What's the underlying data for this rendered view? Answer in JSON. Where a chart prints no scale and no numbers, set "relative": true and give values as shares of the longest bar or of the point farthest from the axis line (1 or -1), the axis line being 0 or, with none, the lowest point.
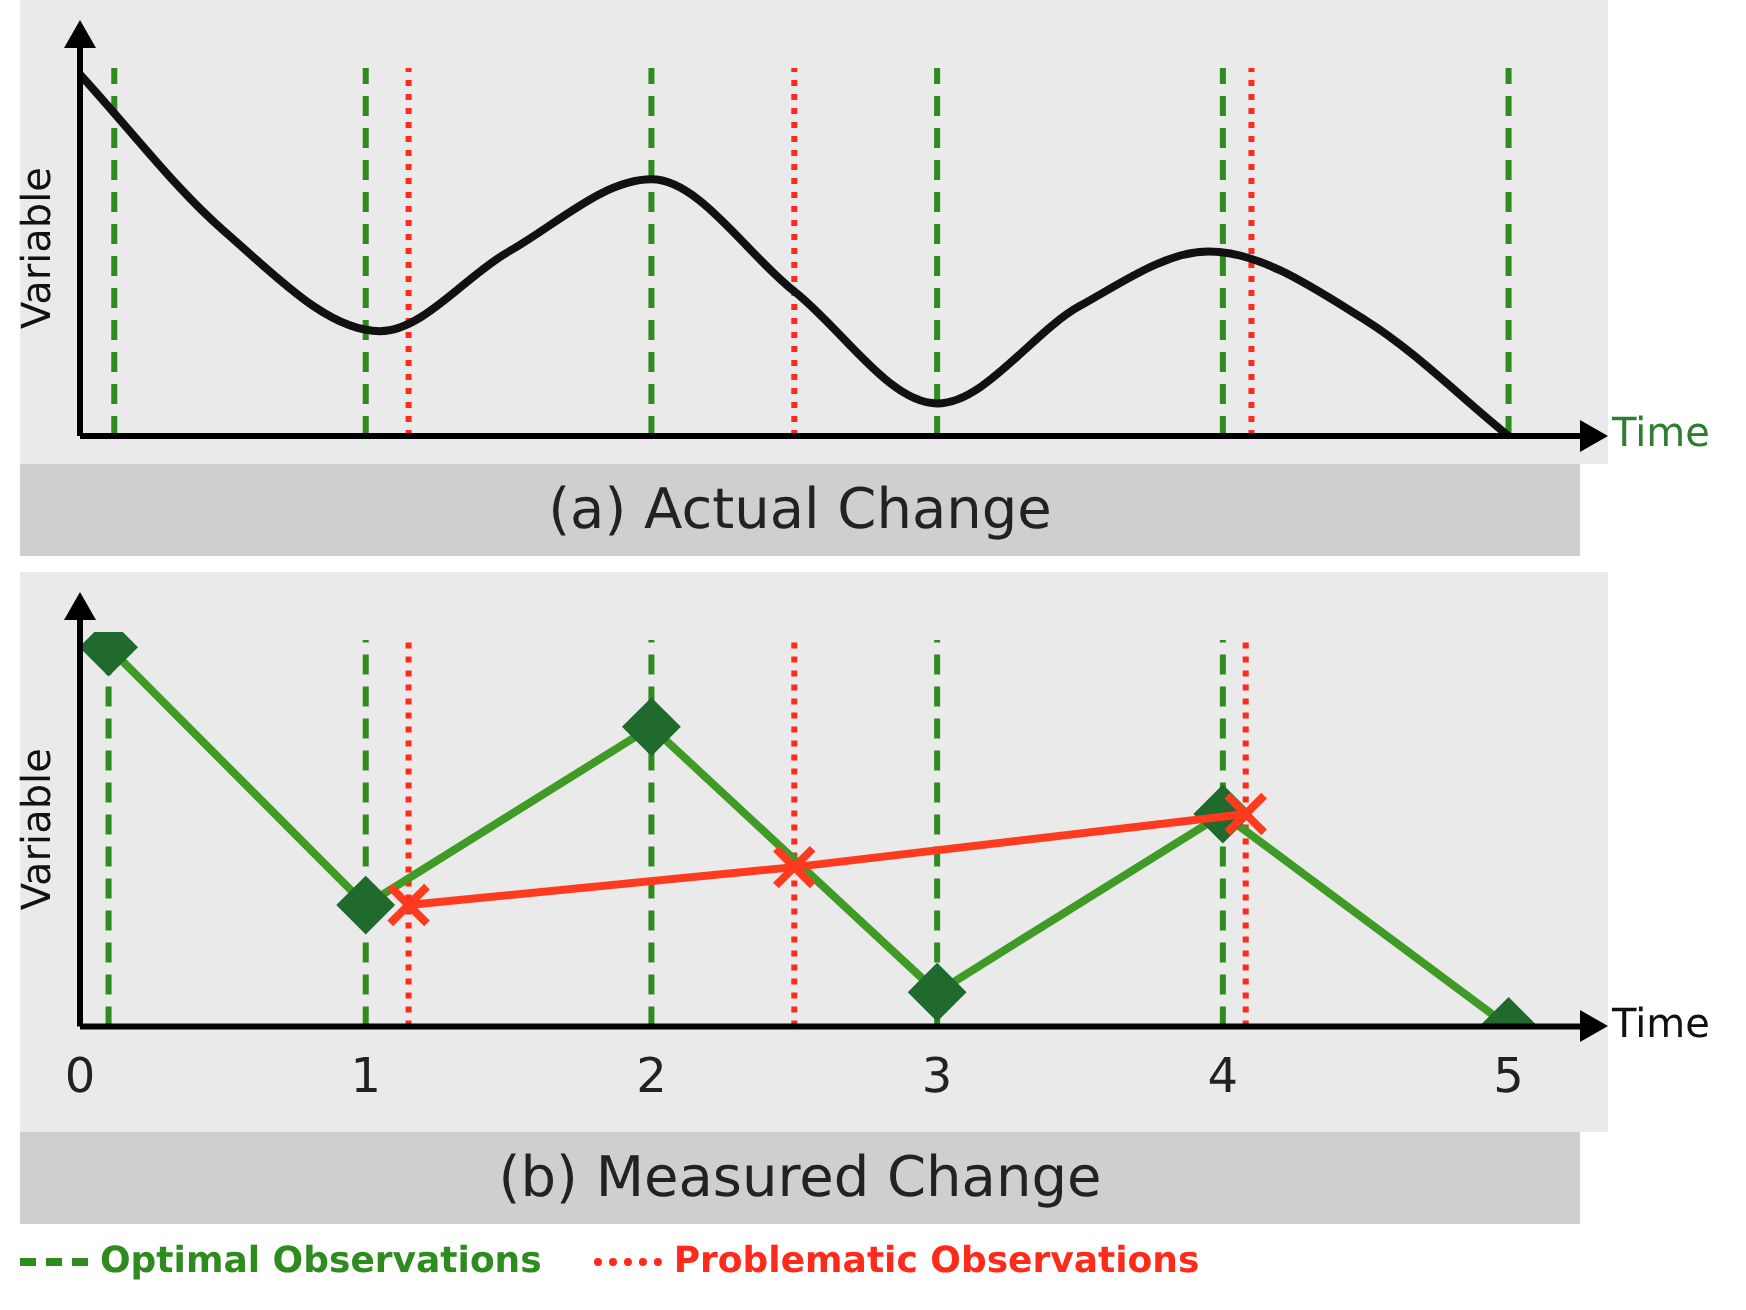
{
  "chart_data": [
    {
      "type": "line",
      "title": "(a) Actual Change",
      "xlabel": "Time",
      "ylabel": "Variable",
      "relative": true,
      "xlim": [
        0,
        5.25
      ],
      "tick_labels": false,
      "grid": false,
      "legend": false,
      "marker": "none",
      "line_style": "solid",
      "series": [
        {
          "color": "#111111",
          "x": [
            0,
            0.5,
            1.05,
            1.5,
            2,
            2.5,
            3,
            3.5,
            3.95,
            4.5,
            5
          ],
          "values": [
            1,
            0.57,
            0.29,
            0.51,
            0.71,
            0.4,
            0.09,
            0.36,
            0.51,
            0.32,
            0
          ]
        }
      ],
      "ref_lines": [
        {
          "axis": "x",
          "value": 0.12,
          "color": "#2e8b1e",
          "line_style": "dashed"
        },
        {
          "axis": "x",
          "value": 1,
          "color": "#2e8b1e",
          "line_style": "dashed"
        },
        {
          "axis": "x",
          "value": 2,
          "color": "#2e8b1e",
          "line_style": "dashed"
        },
        {
          "axis": "x",
          "value": 3,
          "color": "#2e8b1e",
          "line_style": "dashed"
        },
        {
          "axis": "x",
          "value": 4,
          "color": "#2e8b1e",
          "line_style": "dashed"
        },
        {
          "axis": "x",
          "value": 5,
          "color": "#2e8b1e",
          "line_style": "dashed"
        },
        {
          "axis": "x",
          "value": 1.15,
          "color": "#ff2a1a",
          "line_style": "dotted"
        },
        {
          "axis": "x",
          "value": 2.5,
          "color": "#ff2a1a",
          "line_style": "dotted"
        },
        {
          "axis": "x",
          "value": 4.1,
          "color": "#ff2a1a",
          "line_style": "dotted"
        }
      ]
    },
    {
      "type": "line",
      "title": "(b) Measured Change",
      "xlabel": "Time",
      "ylabel": "Variable",
      "relative": true,
      "xlim": [
        0,
        5.25
      ],
      "xticks": [
        0,
        1,
        2,
        3,
        4,
        5
      ],
      "tick_labels": "x",
      "grid": false,
      "legend": "bottom",
      "line_style": "solid",
      "series": [
        {
          "color": "#3f9a26",
          "marker": "diamond",
          "x": [
            0.1,
            1,
            2,
            3,
            4,
            5
          ],
          "values": [
            1,
            0.32,
            0.79,
            0.09,
            0.56,
            0
          ]
        },
        {
          "color": "#ff3b1f",
          "marker": "cross",
          "x": [
            1.15,
            2.5,
            4.08
          ],
          "values": [
            0.32,
            0.42,
            0.56
          ]
        }
      ],
      "ref_lines": [
        {
          "axis": "x",
          "value": 0.1,
          "color": "#2e8b1e",
          "line_style": "dashed",
          "label": "Optimal Observations"
        },
        {
          "axis": "x",
          "value": 1,
          "color": "#2e8b1e",
          "line_style": "dashed"
        },
        {
          "axis": "x",
          "value": 2,
          "color": "#2e8b1e",
          "line_style": "dashed"
        },
        {
          "axis": "x",
          "value": 3,
          "color": "#2e8b1e",
          "line_style": "dashed"
        },
        {
          "axis": "x",
          "value": 4,
          "color": "#2e8b1e",
          "line_style": "dashed"
        },
        {
          "axis": "x",
          "value": 1.15,
          "color": "#ff2a1a",
          "line_style": "dotted",
          "label": "Problematic Observations"
        },
        {
          "axis": "x",
          "value": 2.5,
          "color": "#ff2a1a",
          "line_style": "dotted"
        },
        {
          "axis": "x",
          "value": 4.08,
          "color": "#ff2a1a",
          "line_style": "dotted"
        }
      ]
    }
  ]
}
